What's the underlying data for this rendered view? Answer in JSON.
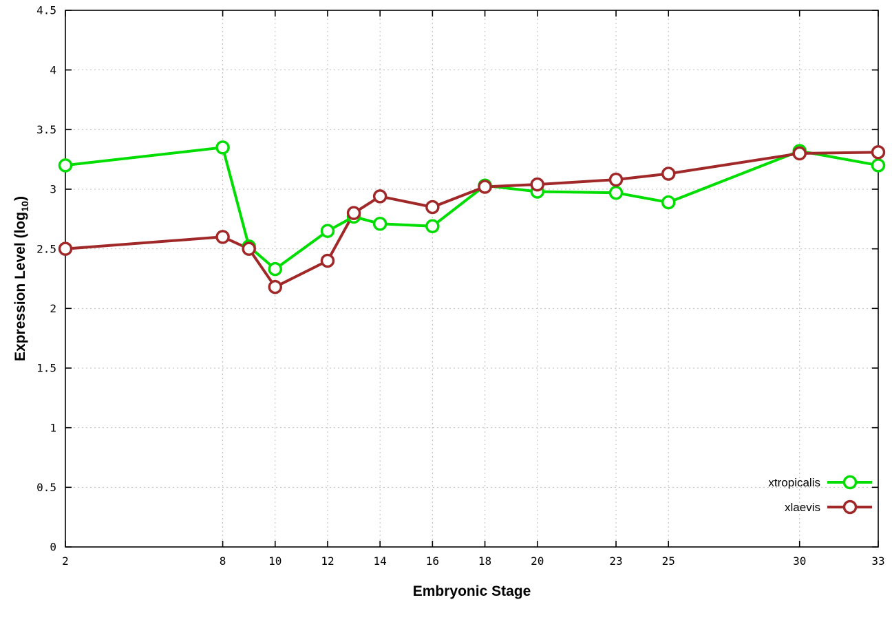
{
  "chart_data": {
    "type": "line",
    "title": "",
    "xlabel": "Embryonic Stage",
    "ylabel": "Expression Level (log10)",
    "ylabel_parts": {
      "pre": "Expression Level (log",
      "sub": "10",
      "post": ")"
    },
    "xlim": [
      2,
      33
    ],
    "ylim": [
      0,
      4.5
    ],
    "x_ticks": [
      2,
      8,
      10,
      12,
      14,
      16,
      18,
      20,
      23,
      25,
      30,
      33
    ],
    "y_ticks": [
      0,
      0.5,
      1,
      1.5,
      2,
      2.5,
      3,
      3.5,
      4,
      4.5
    ],
    "grid": true,
    "legend_position": "bottom-right",
    "x": [
      2,
      8,
      9,
      10,
      12,
      13,
      14,
      16,
      18,
      20,
      23,
      25,
      30,
      33
    ],
    "series": [
      {
        "name": "xtropicalis",
        "color": "#00dd00",
        "values": [
          3.2,
          3.35,
          2.52,
          2.33,
          2.65,
          2.77,
          2.71,
          2.69,
          3.03,
          2.98,
          2.97,
          2.89,
          3.32,
          3.2
        ]
      },
      {
        "name": "xlaevis",
        "color": "#a02828",
        "values": [
          2.5,
          2.6,
          2.5,
          2.18,
          2.4,
          2.8,
          2.94,
          2.85,
          3.02,
          3.04,
          3.08,
          3.13,
          3.3,
          3.31
        ]
      }
    ],
    "colors": {
      "grid": "#bdbdbd",
      "axis": "#000000",
      "background": "#ffffff"
    }
  }
}
